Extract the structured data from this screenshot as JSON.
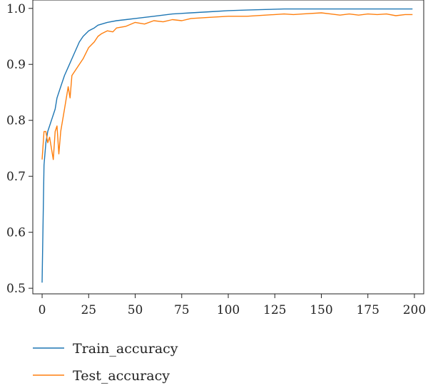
{
  "chart_data": {
    "type": "line",
    "title": "",
    "xlabel": "",
    "ylabel": "",
    "xlim": [
      -5,
      205
    ],
    "ylim": [
      0.49,
      1.015
    ],
    "x_ticks": [
      0,
      25,
      50,
      75,
      100,
      125,
      150,
      175,
      200
    ],
    "y_ticks": [
      0.5,
      0.6,
      0.7,
      0.8,
      0.9,
      1.0
    ],
    "x_tick_labels": [
      "0",
      "25",
      "50",
      "75",
      "100",
      "125",
      "150",
      "175",
      "200"
    ],
    "y_tick_labels": [
      "0.5",
      "0.6",
      "0.7",
      "0.8",
      "0.9",
      "1.0"
    ],
    "grid": false,
    "legend_position": "bottom",
    "series": [
      {
        "name": "Train_accuracy",
        "color": "#1f77b4",
        "x": [
          0,
          1,
          2,
          3,
          4,
          5,
          6,
          7,
          8,
          10,
          12,
          14,
          16,
          18,
          20,
          22,
          25,
          28,
          30,
          35,
          40,
          45,
          50,
          60,
          70,
          80,
          90,
          100,
          110,
          120,
          130,
          140,
          150,
          160,
          170,
          180,
          190,
          199
        ],
        "y": [
          0.51,
          0.72,
          0.76,
          0.78,
          0.79,
          0.8,
          0.81,
          0.82,
          0.84,
          0.86,
          0.88,
          0.895,
          0.91,
          0.925,
          0.94,
          0.95,
          0.96,
          0.965,
          0.97,
          0.975,
          0.978,
          0.98,
          0.982,
          0.986,
          0.99,
          0.992,
          0.994,
          0.996,
          0.997,
          0.998,
          0.999,
          0.999,
          0.999,
          0.999,
          0.999,
          0.999,
          0.999,
          0.999
        ]
      },
      {
        "name": "Test_accuracy",
        "color": "#ff7f0e",
        "x": [
          0,
          1,
          2,
          3,
          4,
          5,
          6,
          7,
          8,
          9,
          10,
          12,
          14,
          15,
          16,
          18,
          20,
          22,
          25,
          28,
          30,
          32,
          35,
          38,
          40,
          45,
          50,
          55,
          60,
          65,
          70,
          75,
          80,
          90,
          100,
          110,
          120,
          125,
          130,
          135,
          140,
          150,
          155,
          160,
          165,
          170,
          175,
          180,
          185,
          190,
          195,
          199
        ],
        "y": [
          0.73,
          0.78,
          0.78,
          0.76,
          0.77,
          0.75,
          0.73,
          0.78,
          0.79,
          0.74,
          0.78,
          0.82,
          0.86,
          0.84,
          0.88,
          0.89,
          0.9,
          0.91,
          0.93,
          0.94,
          0.95,
          0.955,
          0.96,
          0.958,
          0.965,
          0.968,
          0.975,
          0.972,
          0.978,
          0.976,
          0.98,
          0.978,
          0.982,
          0.984,
          0.986,
          0.986,
          0.988,
          0.989,
          0.99,
          0.989,
          0.99,
          0.992,
          0.99,
          0.988,
          0.99,
          0.988,
          0.99,
          0.989,
          0.99,
          0.987,
          0.989,
          0.989
        ]
      }
    ]
  }
}
